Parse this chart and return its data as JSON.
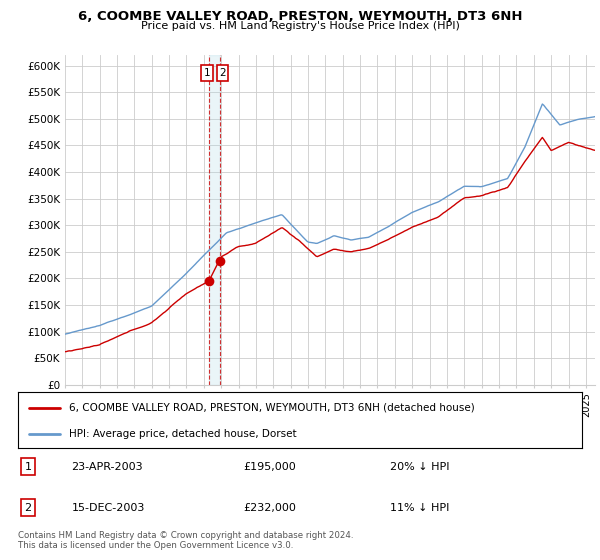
{
  "title1": "6, COOMBE VALLEY ROAD, PRESTON, WEYMOUTH, DT3 6NH",
  "title2": "Price paid vs. HM Land Registry's House Price Index (HPI)",
  "ylabel_ticks": [
    "£0",
    "£50K",
    "£100K",
    "£150K",
    "£200K",
    "£250K",
    "£300K",
    "£350K",
    "£400K",
    "£450K",
    "£500K",
    "£550K",
    "£600K"
  ],
  "ytick_values": [
    0,
    50000,
    100000,
    150000,
    200000,
    250000,
    300000,
    350000,
    400000,
    450000,
    500000,
    550000,
    600000
  ],
  "ylim": [
    0,
    620000
  ],
  "xlim_start": 1995.0,
  "xlim_end": 2025.5,
  "hpi_color": "#6699cc",
  "price_color": "#cc0000",
  "marker1_date": 2003.31,
  "marker1_price": 195000,
  "marker2_date": 2003.96,
  "marker2_price": 232000,
  "legend_line1": "6, COOMBE VALLEY ROAD, PRESTON, WEYMOUTH, DT3 6NH (detached house)",
  "legend_line2": "HPI: Average price, detached house, Dorset",
  "transaction1_date": "23-APR-2003",
  "transaction1_price": "£195,000",
  "transaction1_hpi": "20% ↓ HPI",
  "transaction2_date": "15-DEC-2003",
  "transaction2_price": "£232,000",
  "transaction2_hpi": "11% ↓ HPI",
  "footer": "Contains HM Land Registry data © Crown copyright and database right 2024.\nThis data is licensed under the Open Government Licence v3.0.",
  "vline_color": "#cc0000",
  "grid_color": "#cccccc"
}
